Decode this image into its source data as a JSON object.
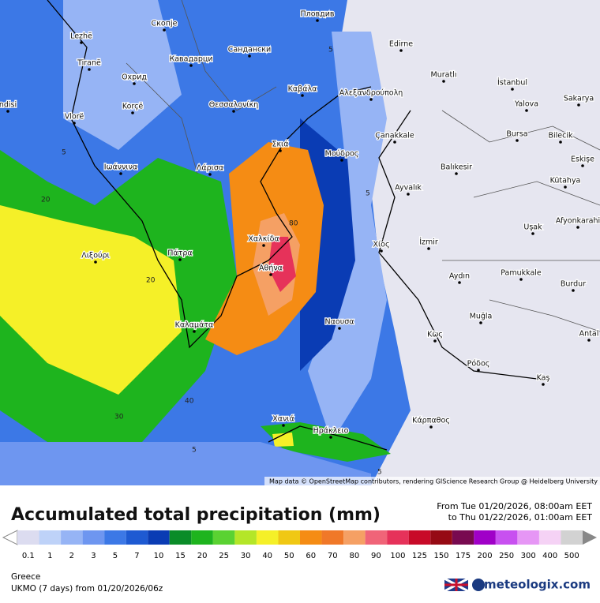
{
  "places": [
    "Пловдив",
    "Скопје",
    "Lezhë",
    "Сандански",
    "Edirne",
    "Tiranë",
    "Кавадарци",
    "Muratlı",
    "İstanbul",
    "Охрид",
    "Καβάλα",
    "Αλεξανδρούπολη",
    "Sakarya",
    "ndisi",
    "Korçë",
    "Θεσσαλονίκη",
    "Yalova",
    "Vlorë",
    "Çanakkale",
    "Bursa",
    "Bilecik",
    "Σκιά",
    "Μούδρος",
    "Eskişe",
    "Ιωάννινα",
    "Λάρισα",
    "Balıkesir",
    "Kütahya",
    "Ayvalık",
    "Afyonkarahi",
    "Uşak",
    "Χαλκίδα",
    "Λιξούρι",
    "Πάτρα",
    "Χίος",
    "İzmir",
    "Αθήνα",
    "Aydın",
    "Pamukkale",
    "Burdur",
    "Muğla",
    "Ναουσα",
    "Καλαμάτα",
    "Antal",
    "Κως",
    "Ρόδος",
    "Kaş",
    "Χανιά",
    "Κάρπαθος",
    "Ηράκλειο"
  ],
  "contour_labels": [
    "5",
    "20",
    "20",
    "40",
    "30",
    "5",
    "5",
    "5",
    "80",
    "5"
  ],
  "attribution": "Map data © OpenStreetMap contributors, rendering GIScience Research Group @ Heidelberg University",
  "title": "Accumulated total precipitation (mm)",
  "period_from": "From Tue 01/20/2026, 08:00am EET",
  "period_to": "to Thu 01/22/2026, 01:00am EET",
  "legend": [
    {
      "value": 0.1,
      "color": "#dcdcf0"
    },
    {
      "value": 1,
      "color": "#bed2f8"
    },
    {
      "value": 2,
      "color": "#96b4f5"
    },
    {
      "value": 3,
      "color": "#6e96f0"
    },
    {
      "value": 5,
      "color": "#3c78e6"
    },
    {
      "value": 7,
      "color": "#1e5ad2"
    },
    {
      "value": 10,
      "color": "#0a3cb4"
    },
    {
      "value": 15,
      "color": "#0a8c28"
    },
    {
      "value": 20,
      "color": "#1eb41e"
    },
    {
      "value": 25,
      "color": "#5ad232"
    },
    {
      "value": 30,
      "color": "#b4e628"
    },
    {
      "value": 40,
      "color": "#f5f028"
    },
    {
      "value": 50,
      "color": "#f0c814"
    },
    {
      "value": 60,
      "color": "#f58c14"
    },
    {
      "value": 70,
      "color": "#f07828"
    },
    {
      "value": 80,
      "color": "#f5a064"
    },
    {
      "value": 90,
      "color": "#f06478"
    },
    {
      "value": 100,
      "color": "#e6325a"
    },
    {
      "value": 125,
      "color": "#c80a28"
    },
    {
      "value": 150,
      "color": "#960a14"
    },
    {
      "value": 175,
      "color": "#780a50"
    },
    {
      "value": 200,
      "color": "#a000c8"
    },
    {
      "value": 250,
      "color": "#c850f0"
    },
    {
      "value": 300,
      "color": "#e696f5"
    },
    {
      "value": 400,
      "color": "#f5d2f5"
    },
    {
      "value": 500,
      "color": "#d2d2d2"
    }
  ],
  "region": "Greece",
  "model": "UKMO (7 days) from 01/20/2026/06z",
  "brand": "meteologix.com"
}
